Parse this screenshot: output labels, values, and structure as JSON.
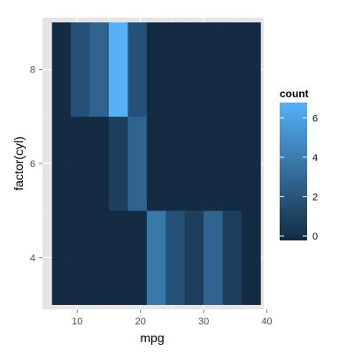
{
  "chart_data": {
    "type": "heatmap",
    "title": "",
    "xlabel": "mpg",
    "ylabel": "factor(cyl)",
    "xlim": [
      4.5,
      39.5
    ],
    "ylim": [
      2.9,
      9.1
    ],
    "x_ticks": [
      10,
      20,
      30,
      40
    ],
    "y_ticks": [
      4,
      6,
      8
    ],
    "x_tick_labels": [
      "10",
      "20",
      "30",
      "40"
    ],
    "y_tick_labels": [
      "4",
      "6",
      "8"
    ],
    "x_bins": [
      6,
      9,
      12,
      15,
      18,
      21,
      24,
      27,
      30,
      33,
      36,
      39
    ],
    "y_bands": [
      {
        "label": "4",
        "y0": 3,
        "y1": 5
      },
      {
        "label": "6",
        "y0": 5,
        "y1": 7
      },
      {
        "label": "8",
        "y0": 7,
        "y1": 9
      }
    ],
    "counts": [
      [
        0,
        0,
        0,
        0,
        0,
        4,
        2,
        1,
        3,
        1,
        0
      ],
      [
        0,
        0,
        0,
        1,
        3,
        0,
        0,
        0,
        0,
        0,
        0
      ],
      [
        0,
        2,
        3,
        7,
        2,
        0,
        0,
        0,
        0,
        0,
        0
      ]
    ],
    "legend": {
      "title": "count",
      "ticks": [
        0,
        2,
        4,
        6
      ],
      "tick_labels": [
        "0",
        "2",
        "4",
        "6"
      ],
      "range": [
        0,
        7
      ],
      "low_color": "#132b43",
      "high_color": "#56b1f7",
      "position": "right"
    },
    "panel_background": "#e5e5e5",
    "grid": true
  }
}
